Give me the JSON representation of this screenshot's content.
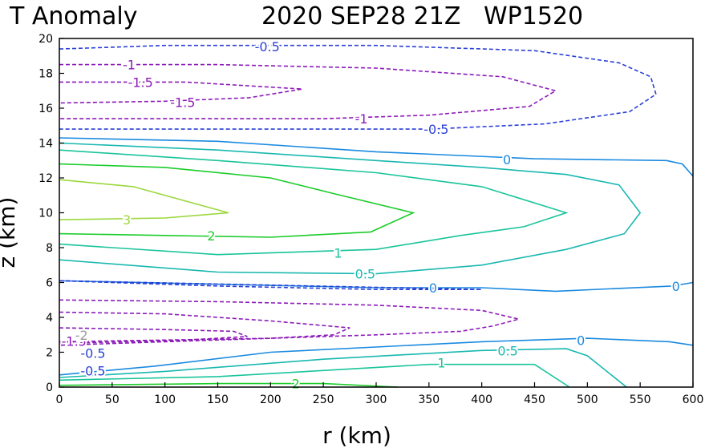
{
  "chart_data": {
    "type": "contour",
    "title_left": "T Anomaly",
    "title_right": "2020 SEP28 21Z   WP1520",
    "xlabel": "r (km)",
    "ylabel": "z (km)",
    "xlim": [
      0,
      600
    ],
    "ylim": [
      0,
      20
    ],
    "xticks": [
      "0",
      "50",
      "100",
      "150",
      "200",
      "250",
      "300",
      "350",
      "400",
      "450",
      "500",
      "550",
      "600"
    ],
    "yticks": [
      "0",
      "2",
      "4",
      "6",
      "8",
      "10",
      "12",
      "14",
      "16",
      "18",
      "20"
    ],
    "colors": {
      "neg1.5": "#8b1ab8",
      "neg1": "#8b1ab8",
      "neg0.5": "#2a3fd6",
      "zero": "#1a8ae0",
      "pos0.5": "#19b8b0",
      "pos1": "#19c49a",
      "pos2": "#1ccc2a",
      "pos3": "#9bd83c",
      "neg_gray": "#9a9a9a"
    },
    "contours": [
      {
        "level": -0.5,
        "style": "dashed",
        "color": "neg0.5",
        "points": [
          [
            0,
            19.4
          ],
          [
            100,
            19.6
          ],
          [
            300,
            19.6
          ],
          [
            450,
            19.3
          ],
          [
            530,
            18.6
          ],
          [
            560,
            17.8
          ],
          [
            565,
            16.8
          ],
          [
            540,
            15.8
          ],
          [
            460,
            15.1
          ],
          [
            350,
            14.8
          ],
          [
            200,
            14.8
          ],
          [
            100,
            14.8
          ],
          [
            0,
            14.8
          ]
        ]
      },
      {
        "level": -1,
        "style": "dashed",
        "color": "neg1",
        "points": [
          [
            0,
            18.5
          ],
          [
            150,
            18.5
          ],
          [
            300,
            18.3
          ],
          [
            420,
            17.8
          ],
          [
            470,
            17.0
          ],
          [
            445,
            16.1
          ],
          [
            350,
            15.6
          ],
          [
            250,
            15.4
          ],
          [
            100,
            15.4
          ],
          [
            0,
            15.4
          ]
        ]
      },
      {
        "level": -1.5,
        "style": "dashed",
        "color": "neg1.5",
        "points": [
          [
            0,
            17.5
          ],
          [
            120,
            17.5
          ],
          [
            230,
            17.1
          ],
          [
            180,
            16.6
          ],
          [
            100,
            16.4
          ],
          [
            0,
            16.3
          ]
        ]
      },
      {
        "level": 0,
        "style": "solid",
        "color": "zero",
        "points": [
          [
            0,
            14.3
          ],
          [
            150,
            14.1
          ],
          [
            300,
            13.5
          ],
          [
            450,
            13.1
          ],
          [
            575,
            13.0
          ],
          [
            590,
            12.8
          ],
          [
            600,
            12.1
          ]
        ]
      },
      {
        "level": 0.5,
        "style": "solid",
        "color": "pos0.5",
        "points": [
          [
            0,
            14.0
          ],
          [
            150,
            13.6
          ],
          [
            300,
            13.0
          ],
          [
            400,
            12.6
          ],
          [
            480,
            12.2
          ],
          [
            530,
            11.6
          ],
          [
            550,
            10.0
          ],
          [
            535,
            8.8
          ],
          [
            480,
            7.9
          ],
          [
            400,
            7.0
          ],
          [
            300,
            6.5
          ],
          [
            150,
            6.6
          ],
          [
            0,
            7.3
          ]
        ]
      },
      {
        "level": 1,
        "style": "solid",
        "color": "pos1",
        "points": [
          [
            0,
            13.6
          ],
          [
            150,
            13.0
          ],
          [
            300,
            12.3
          ],
          [
            400,
            11.5
          ],
          [
            480,
            10.0
          ],
          [
            440,
            9.2
          ],
          [
            380,
            8.7
          ],
          [
            300,
            7.9
          ],
          [
            150,
            7.6
          ],
          [
            0,
            8.2
          ]
        ]
      },
      {
        "level": 2,
        "style": "solid",
        "color": "pos2",
        "points": [
          [
            0,
            12.8
          ],
          [
            100,
            12.6
          ],
          [
            200,
            12.0
          ],
          [
            260,
            11.1
          ],
          [
            335,
            10.0
          ],
          [
            295,
            8.9
          ],
          [
            200,
            8.6
          ],
          [
            100,
            8.7
          ],
          [
            0,
            8.8
          ]
        ]
      },
      {
        "level": 3,
        "style": "solid",
        "color": "pos3",
        "points": [
          [
            0,
            11.9
          ],
          [
            70,
            11.5
          ],
          [
            160,
            10.0
          ],
          [
            100,
            9.7
          ],
          [
            0,
            9.6
          ]
        ]
      },
      {
        "level": 0,
        "style": "solid",
        "color": "zero",
        "points": [
          [
            0,
            6.1
          ],
          [
            150,
            5.9
          ],
          [
            300,
            5.7
          ],
          [
            400,
            5.7
          ],
          [
            470,
            5.5
          ],
          [
            580,
            5.8
          ],
          [
            600,
            6.0
          ]
        ]
      },
      {
        "level": -0.5,
        "style": "dashed",
        "color": "neg0.5",
        "points": [
          [
            0,
            6.1
          ],
          [
            150,
            5.8
          ],
          [
            300,
            5.6
          ],
          [
            400,
            5.6
          ],
          [
            0,
            6.1
          ]
        ]
      },
      {
        "level": -1,
        "style": "dashed",
        "color": "neg1",
        "points": [
          [
            0,
            5.0
          ],
          [
            150,
            4.9
          ],
          [
            300,
            4.7
          ],
          [
            400,
            4.4
          ],
          [
            435,
            3.9
          ],
          [
            410,
            3.5
          ],
          [
            380,
            3.2
          ],
          [
            300,
            3.0
          ],
          [
            200,
            2.8
          ],
          [
            100,
            2.7
          ],
          [
            0,
            2.6
          ]
        ]
      },
      {
        "level": -1.5,
        "style": "dashed",
        "color": "neg1.5",
        "points": [
          [
            0,
            4.3
          ],
          [
            100,
            4.2
          ],
          [
            200,
            3.8
          ],
          [
            275,
            3.4
          ],
          [
            260,
            3.0
          ],
          [
            200,
            2.8
          ],
          [
            100,
            2.6
          ],
          [
            0,
            2.4
          ]
        ]
      },
      {
        "level": -1.5,
        "style": "dashed",
        "color": "neg1.5",
        "points": [
          [
            0,
            3.4
          ],
          [
            100,
            3.3
          ],
          [
            165,
            3.2
          ],
          [
            178,
            2.9
          ],
          [
            120,
            2.7
          ],
          [
            0,
            2.5
          ]
        ]
      },
      {
        "level": 0,
        "style": "solid",
        "color": "zero",
        "points": [
          [
            0,
            0.7
          ],
          [
            90,
            1.2
          ],
          [
            200,
            2.0
          ],
          [
            300,
            2.3
          ],
          [
            400,
            2.6
          ],
          [
            500,
            2.8
          ],
          [
            578,
            2.6
          ],
          [
            600,
            2.4
          ]
        ]
      },
      {
        "level": 0.5,
        "style": "solid",
        "color": "pos0.5",
        "points": [
          [
            0,
            0.55
          ],
          [
            100,
            0.9
          ],
          [
            250,
            1.6
          ],
          [
            400,
            2.1
          ],
          [
            480,
            2.2
          ],
          [
            500,
            1.8
          ],
          [
            537,
            0.0
          ]
        ]
      },
      {
        "level": 1,
        "style": "solid",
        "color": "pos1",
        "points": [
          [
            0,
            0.4
          ],
          [
            150,
            0.6
          ],
          [
            350,
            1.3
          ],
          [
            450,
            1.3
          ],
          [
            483,
            0.0
          ]
        ]
      },
      {
        "level": 2,
        "style": "solid",
        "color": "pos2",
        "points": [
          [
            0,
            0.1
          ],
          [
            150,
            0.2
          ],
          [
            250,
            0.2
          ],
          [
            320,
            0.0
          ]
        ]
      }
    ],
    "labels": [
      {
        "text": "-0.5",
        "x": 185,
        "y": 19.55,
        "color": "neg0.5"
      },
      {
        "text": "-1",
        "x": 60,
        "y": 18.5,
        "color": "neg1"
      },
      {
        "text": "-1.5",
        "x": 65,
        "y": 17.5,
        "color": "neg1.5"
      },
      {
        "text": "-1.5",
        "x": 105,
        "y": 16.35,
        "color": "neg1.5"
      },
      {
        "text": "-1",
        "x": 280,
        "y": 15.4,
        "color": "neg1"
      },
      {
        "text": "-0.5",
        "x": 345,
        "y": 14.8,
        "color": "neg0.5"
      },
      {
        "text": "0",
        "x": 420,
        "y": 13.05,
        "color": "zero"
      },
      {
        "text": "3",
        "x": 60,
        "y": 9.6,
        "color": "pos3"
      },
      {
        "text": "2",
        "x": 140,
        "y": 8.7,
        "color": "pos2"
      },
      {
        "text": "1",
        "x": 260,
        "y": 7.7,
        "color": "pos1"
      },
      {
        "text": "0.5",
        "x": 280,
        "y": 6.5,
        "color": "pos0.5"
      },
      {
        "text": "0",
        "x": 350,
        "y": 5.7,
        "color": "zero"
      },
      {
        "text": "0",
        "x": 580,
        "y": 5.8,
        "color": "zero"
      },
      {
        "text": "0",
        "x": 490,
        "y": 2.7,
        "color": "zero"
      },
      {
        "text": "0.5",
        "x": 415,
        "y": 2.1,
        "color": "pos0.5"
      },
      {
        "text": "1",
        "x": 358,
        "y": 1.4,
        "color": "pos1"
      },
      {
        "text": "2",
        "x": 220,
        "y": 0.2,
        "color": "pos2"
      },
      {
        "text": "-0.5",
        "x": 20,
        "y": 1.95,
        "color": "neg0.5"
      },
      {
        "text": "-0.5",
        "x": 20,
        "y": 0.95,
        "color": "neg0.5"
      },
      {
        "text": "-1.5",
        "x": 2,
        "y": 2.65,
        "color": "neg1.5"
      },
      {
        "text": "-2",
        "x": 15,
        "y": 3.0,
        "color": "neg_gray"
      }
    ]
  }
}
